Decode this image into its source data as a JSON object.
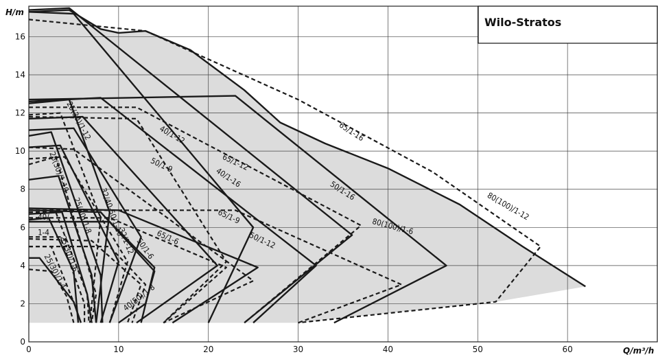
{
  "chart_data": {
    "type": "line",
    "title": "",
    "brand": "Wilo-Stratos",
    "xlabel": "Q/m³/h",
    "ylabel": "H/m",
    "xlim": [
      0,
      70
    ],
    "ylim": [
      0,
      17.6
    ],
    "x_ticks": [
      0,
      10,
      20,
      30,
      40,
      50,
      60
    ],
    "y_ticks": [
      0,
      2,
      4,
      6,
      8,
      10,
      12,
      14,
      16
    ],
    "grid": true,
    "envelope": [
      [
        0,
        17.3
      ],
      [
        4.5,
        17.4
      ],
      [
        8,
        16.4
      ],
      [
        10,
        16.2
      ],
      [
        13,
        16.3
      ],
      [
        18,
        15.3
      ],
      [
        24,
        13.2
      ],
      [
        28,
        11.5
      ],
      [
        33,
        10.4
      ],
      [
        40,
        9.1
      ],
      [
        48,
        7.2
      ],
      [
        55,
        5.0
      ],
      [
        62,
        2.9
      ],
      [
        52,
        2.1
      ],
      [
        30,
        1.0
      ],
      [
        0,
        1.0
      ]
    ],
    "series": [
      {
        "name": "25(30)/1-4",
        "style": "solid",
        "points": [
          [
            0,
            4.4
          ],
          [
            1.2,
            4.4
          ],
          [
            5,
            2.1
          ],
          [
            5.8,
            1.0
          ]
        ]
      },
      {
        "name": "25(30)/1-4",
        "style": "dashed",
        "points": [
          [
            0,
            3.8
          ],
          [
            2.5,
            3.7
          ],
          [
            4.2,
            2.4
          ],
          [
            5.0,
            1.0
          ]
        ]
      },
      {
        "name": "40/1-4",
        "style": "solid",
        "points": [
          [
            0,
            6.4
          ],
          [
            2.2,
            6.5
          ],
          [
            5,
            3.7
          ],
          [
            5.5,
            1.0
          ]
        ]
      },
      {
        "name": "40/1-4",
        "style": "dashed",
        "points": [
          [
            0,
            5.0
          ],
          [
            2.5,
            5.0
          ],
          [
            5.4,
            1.6
          ]
        ]
      },
      {
        "name": "25(30)/1-6",
        "style": "solid",
        "points": [
          [
            0,
            6.7
          ],
          [
            3.7,
            6.8
          ],
          [
            6.5,
            2.5
          ],
          [
            7,
            1.0
          ]
        ]
      },
      {
        "name": "25(30)/1-6",
        "style": "dashed",
        "points": [
          [
            0,
            5.5
          ],
          [
            3.5,
            5.5
          ],
          [
            6.2,
            2.0
          ],
          [
            6.2,
            1.0
          ]
        ]
      },
      {
        "name": "25(30)/1-8",
        "style": "solid",
        "points": [
          [
            0,
            8.5
          ],
          [
            3.3,
            8.7
          ],
          [
            7,
            3.5
          ],
          [
            7.5,
            1.0
          ]
        ]
      },
      {
        "name": "25(30)/1-8",
        "style": "dashed",
        "points": [
          [
            0,
            6.8
          ],
          [
            3.0,
            6.8
          ],
          [
            6.5,
            2.5
          ],
          [
            6.7,
            1.0
          ]
        ]
      },
      {
        "name": "25(30)/1-10",
        "style": "solid",
        "points": [
          [
            0,
            10.8
          ],
          [
            2.5,
            11.0
          ],
          [
            8,
            3.5
          ],
          [
            8.2,
            1.0
          ]
        ]
      },
      {
        "name": "25(30)/1-10",
        "style": "dashed",
        "points": [
          [
            0,
            9.3
          ],
          [
            3.0,
            9.7
          ],
          [
            7.5,
            2.5
          ],
          [
            7.0,
            1.0
          ]
        ]
      },
      {
        "name": "25(30)/1-12",
        "style": "solid",
        "points": [
          [
            0,
            12.5
          ],
          [
            4.5,
            12.7
          ],
          [
            9.0,
            6.8
          ],
          [
            7.5,
            1.0
          ]
        ]
      },
      {
        "name": "25(30)/1-12",
        "style": "dashed",
        "points": [
          [
            0,
            11.9
          ],
          [
            3.5,
            12.0
          ],
          [
            8.0,
            6.5
          ],
          [
            6.8,
            1.0
          ]
        ]
      },
      {
        "name": "32/40-50/1-10",
        "style": "solid",
        "points": [
          [
            0,
            10.2
          ],
          [
            3.5,
            10.3
          ],
          [
            10,
            4.2
          ],
          [
            8,
            1.0
          ]
        ]
      },
      {
        "name": "32/1-12",
        "style": "solid",
        "points": [
          [
            0,
            11.1
          ],
          [
            5,
            11.2
          ],
          [
            12.5,
            5.5
          ],
          [
            9,
            1.0
          ]
        ]
      },
      {
        "name": "32/1-12",
        "style": "dashed",
        "points": [
          [
            0,
            9.6
          ],
          [
            4,
            9.7
          ],
          [
            11,
            4.2
          ],
          [
            9,
            1.0
          ]
        ]
      },
      {
        "name": "40(50)/1-8",
        "style": "solid",
        "points": [
          [
            0,
            6.9
          ],
          [
            8,
            6.8
          ],
          [
            14,
            3.7
          ],
          [
            13,
            2.0
          ],
          [
            10,
            1.0
          ]
        ]
      },
      {
        "name": "40(50)/1-8",
        "style": "dashed",
        "points": [
          [
            0,
            5.4
          ],
          [
            7,
            5.3
          ],
          [
            12.5,
            3.0
          ],
          [
            11,
            1.0
          ]
        ]
      },
      {
        "name": "50/1-6",
        "style": "solid",
        "points": [
          [
            0,
            6.3
          ],
          [
            9,
            6.3
          ],
          [
            14,
            3.9
          ],
          [
            12.5,
            1.0
          ]
        ]
      },
      {
        "name": "50/1-6",
        "style": "dashed",
        "points": [
          [
            0,
            5.0
          ],
          [
            9,
            5.0
          ],
          [
            13,
            3.0
          ],
          [
            11.5,
            1.0
          ]
        ]
      },
      {
        "name": "40/1-12",
        "style": "solid",
        "points": [
          [
            0,
            11.7
          ],
          [
            6,
            11.8
          ],
          [
            21,
            4.0
          ],
          [
            12,
            1.0
          ]
        ]
      },
      {
        "name": "40/1-12",
        "style": "dashed",
        "points": [
          [
            0,
            11.8
          ],
          [
            12,
            11.7
          ],
          [
            22,
            4.2
          ],
          [
            15,
            1.0
          ]
        ]
      },
      {
        "name": "50/1-9",
        "style": "dashed",
        "points": [
          [
            0,
            10.2
          ],
          [
            5,
            10.1
          ],
          [
            25,
            3.2
          ],
          [
            15,
            1.0
          ]
        ]
      },
      {
        "name": "65/1-6",
        "style": "dashed",
        "points": [
          [
            0,
            6.5
          ],
          [
            9,
            6.5
          ],
          [
            22,
            3.9
          ],
          [
            15,
            1.0
          ]
        ]
      },
      {
        "name": "65/1-9",
        "style": "solid",
        "points": [
          [
            0,
            7.0
          ],
          [
            10,
            6.9
          ],
          [
            25.5,
            3.9
          ],
          [
            16,
            1.0
          ]
        ]
      },
      {
        "name": "40/1-16",
        "style": "solid",
        "points": [
          [
            0,
            17.3
          ],
          [
            5,
            17.2
          ],
          [
            25,
            6.0
          ],
          [
            20,
            1.0
          ]
        ]
      },
      {
        "name": "65/1-12",
        "style": "dashed",
        "points": [
          [
            0,
            12.3
          ],
          [
            12,
            12.3
          ],
          [
            37,
            6.1
          ],
          [
            24,
            1.0
          ]
        ]
      },
      {
        "name": "50/1-12",
        "style": "solid",
        "points": [
          [
            0,
            12.6
          ],
          [
            8,
            12.8
          ],
          [
            32,
            4.0
          ],
          [
            25,
            1.0
          ]
        ]
      },
      {
        "name": "50/1-16",
        "style": "solid",
        "points": [
          [
            0,
            17.4
          ],
          [
            4.5,
            17.5
          ],
          [
            36,
            5.6
          ],
          [
            24,
            1.0
          ]
        ]
      },
      {
        "name": "80(100)/1-6",
        "style": "dashed",
        "points": [
          [
            0,
            6.9
          ],
          [
            23,
            6.9
          ],
          [
            41.5,
            3.0
          ],
          [
            30,
            1.0
          ]
        ]
      },
      {
        "name": "65/1-16",
        "style": "solid",
        "points": [
          [
            0,
            12.7
          ],
          [
            23,
            12.9
          ],
          [
            46.5,
            4.0
          ],
          [
            34,
            1.0
          ]
        ]
      },
      {
        "name": "80(100)/1-12",
        "style": "dashed",
        "points": [
          [
            0,
            16.9
          ],
          [
            13,
            16.3
          ],
          [
            30,
            12.7
          ],
          [
            45,
            8.9
          ],
          [
            53,
            6.3
          ],
          [
            57,
            5.0
          ],
          [
            52,
            2.1
          ],
          [
            30,
            1.0
          ]
        ]
      }
    ],
    "labels": [
      {
        "text": "25(30)/1-12",
        "x": 4.2,
        "y": 12.5,
        "angle": 62
      },
      {
        "text": "40/1-12",
        "x": 14.5,
        "y": 11.1,
        "angle": 30
      },
      {
        "text": "50/1-9",
        "x": 13.5,
        "y": 9.4,
        "angle": 25
      },
      {
        "text": "25(30)/1-10",
        "x": 2.3,
        "y": 9.9,
        "angle": 70
      },
      {
        "text": "32/40-50/1-10",
        "x": 8.0,
        "y": 8.0,
        "angle": 70
      },
      {
        "text": "25(30)/1-8",
        "x": 5.0,
        "y": 7.5,
        "angle": 70
      },
      {
        "text": "40/",
        "x": 1.0,
        "y": 6.4,
        "angle": 0
      },
      {
        "text": "1-4",
        "x": 1.0,
        "y": 5.6,
        "angle": 0
      },
      {
        "text": "25(30)/1-6",
        "x": 3.5,
        "y": 5.5,
        "angle": 70
      },
      {
        "text": "25(30)/1-4",
        "x": 1.7,
        "y": 4.5,
        "angle": 62
      },
      {
        "text": "32/1-12",
        "x": 10.0,
        "y": 5.9,
        "angle": 68
      },
      {
        "text": "50/1-6",
        "x": 12.0,
        "y": 5.3,
        "angle": 55
      },
      {
        "text": "40(50)/1-8",
        "x": 10.8,
        "y": 1.6,
        "angle": -38
      },
      {
        "text": "65/1-6",
        "x": 14.2,
        "y": 5.6,
        "angle": 25
      },
      {
        "text": "65/1-12",
        "x": 21.5,
        "y": 9.6,
        "angle": 25
      },
      {
        "text": "40/1-16",
        "x": 20.8,
        "y": 8.9,
        "angle": 34
      },
      {
        "text": "65/1-9",
        "x": 21.0,
        "y": 6.7,
        "angle": 25
      },
      {
        "text": "50/1-12",
        "x": 24.5,
        "y": 5.5,
        "angle": 25
      },
      {
        "text": "65/1-16",
        "x": 34.5,
        "y": 11.3,
        "angle": 33
      },
      {
        "text": "50/1-16",
        "x": 33.5,
        "y": 8.2,
        "angle": 33
      },
      {
        "text": "80(100)/1-6",
        "x": 38.2,
        "y": 6.2,
        "angle": 15
      },
      {
        "text": "80(100)/1-12",
        "x": 51.0,
        "y": 7.6,
        "angle": 30
      }
    ]
  }
}
